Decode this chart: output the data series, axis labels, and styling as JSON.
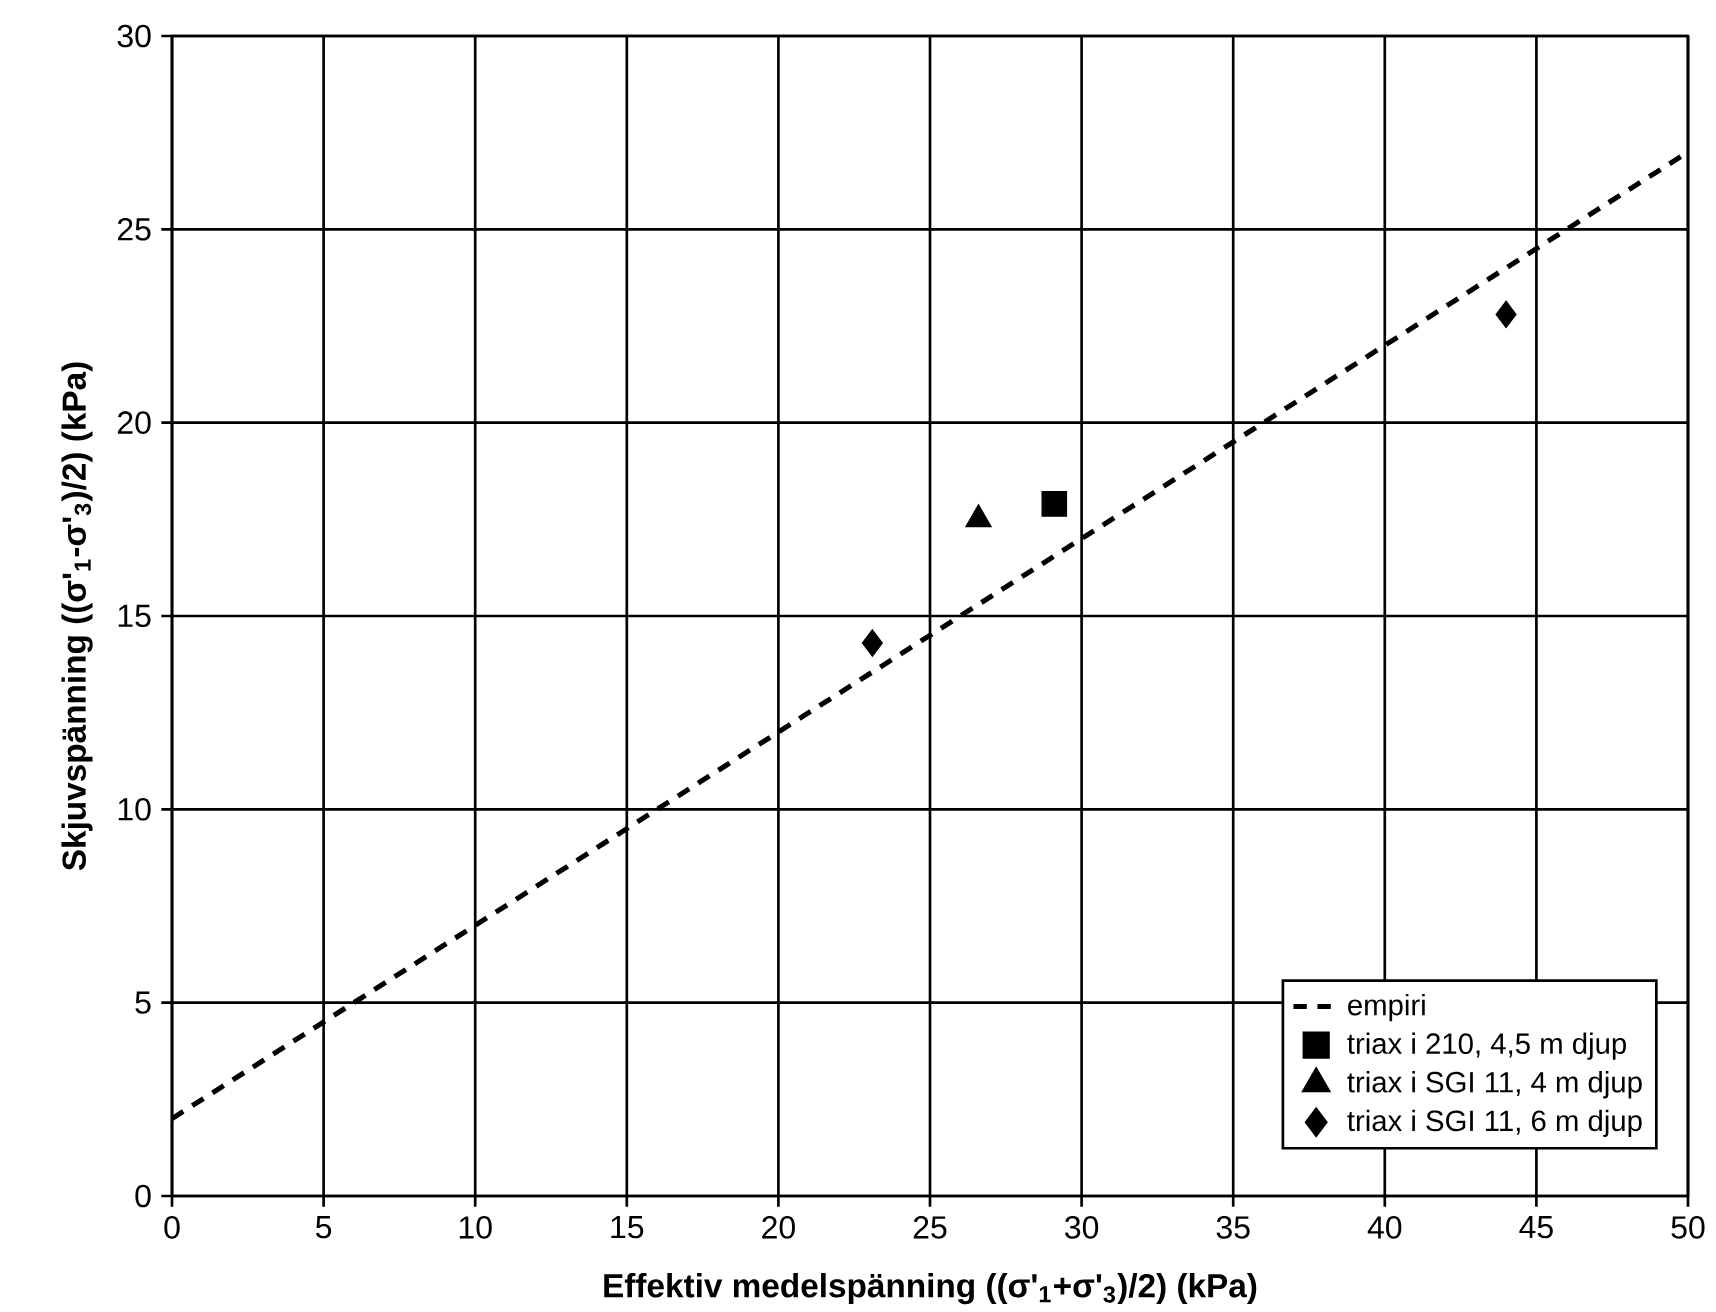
{
  "chart_data": {
    "type": "scatter",
    "xlabel": "Effektiv medelspänning ((σ'$_{1}$+σ'$_{3}$)/2) (kPa)",
    "ylabel": "Skjuvspänning ((σ'$_{1}$-σ'$_{3}$)/2) (kPa)",
    "xlim": [
      0,
      50
    ],
    "ylim": [
      0,
      30
    ],
    "xticks": [
      0,
      5,
      10,
      15,
      20,
      25,
      30,
      35,
      40,
      45,
      50
    ],
    "yticks": [
      0,
      5,
      10,
      15,
      20,
      25,
      30
    ],
    "grid": true,
    "legend": "bottom right",
    "series": [
      {
        "name": "empiri",
        "type": "line",
        "line_style": "dashed",
        "marker": "none",
        "color": "#000000",
        "x": [
          0,
          50
        ],
        "values": [
          2,
          27
        ]
      },
      {
        "name": "triax i 210, 4,5 m djup",
        "marker": "square",
        "color": "#000000",
        "x": [
          29.1
        ],
        "values": [
          17.9
        ]
      },
      {
        "name": "triax i SGI 11, 4 m djup",
        "marker": "triangle",
        "color": "#000000",
        "x": [
          26.6
        ],
        "values": [
          17.5
        ]
      },
      {
        "name": "triax i SGI 11, 6 m djup",
        "marker": "diamond",
        "color": "#000000",
        "x": [
          23.1,
          44.0
        ],
        "values": [
          14.3,
          22.8
        ]
      }
    ]
  }
}
